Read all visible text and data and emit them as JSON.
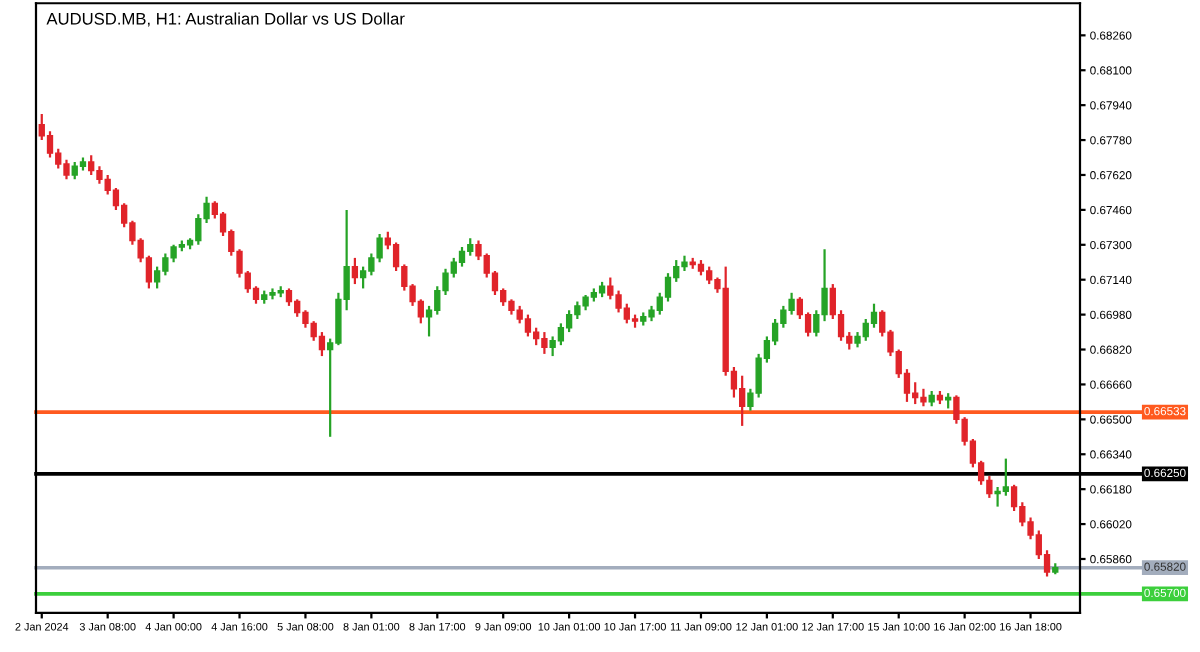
{
  "chart_data": {
    "type": "candlestick",
    "title": "AUDUSD.MB, H1: Australian Dollar vs US Dollar",
    "ohlc": [
      [
        0.6785,
        0.679,
        0.6778,
        0.678
      ],
      [
        0.678,
        0.6782,
        0.677,
        0.6772
      ],
      [
        0.6772,
        0.6774,
        0.6765,
        0.6767
      ],
      [
        0.6767,
        0.6769,
        0.676,
        0.6762
      ],
      [
        0.6762,
        0.6768,
        0.676,
        0.6766
      ],
      [
        0.6766,
        0.677,
        0.6764,
        0.6768
      ],
      [
        0.6768,
        0.6771,
        0.6762,
        0.6764
      ],
      [
        0.6764,
        0.6766,
        0.6758,
        0.676
      ],
      [
        0.676,
        0.6762,
        0.6753,
        0.6755
      ],
      [
        0.6755,
        0.6756,
        0.6746,
        0.6748
      ],
      [
        0.6748,
        0.6749,
        0.6738,
        0.674
      ],
      [
        0.674,
        0.6741,
        0.673,
        0.6732
      ],
      [
        0.6732,
        0.6733,
        0.6722,
        0.6724
      ],
      [
        0.6724,
        0.6725,
        0.671,
        0.6713
      ],
      [
        0.6713,
        0.672,
        0.671,
        0.6718
      ],
      [
        0.6718,
        0.6726,
        0.6716,
        0.6724
      ],
      [
        0.6724,
        0.673,
        0.6722,
        0.6729
      ],
      [
        0.6729,
        0.6732,
        0.6727,
        0.673
      ],
      [
        0.673,
        0.6733,
        0.6728,
        0.6732
      ],
      [
        0.6732,
        0.6744,
        0.673,
        0.6742
      ],
      [
        0.6742,
        0.6752,
        0.674,
        0.6749
      ],
      [
        0.6749,
        0.675,
        0.6742,
        0.6744
      ],
      [
        0.6744,
        0.6745,
        0.6734,
        0.6736
      ],
      [
        0.6736,
        0.6737,
        0.6725,
        0.6727
      ],
      [
        0.6727,
        0.6728,
        0.6715,
        0.6717
      ],
      [
        0.6717,
        0.6718,
        0.6708,
        0.671
      ],
      [
        0.671,
        0.6711,
        0.6703,
        0.6705
      ],
      [
        0.6705,
        0.6709,
        0.6703,
        0.6707
      ],
      [
        0.6707,
        0.671,
        0.6705,
        0.6708
      ],
      [
        0.6708,
        0.6711,
        0.6706,
        0.6709
      ],
      [
        0.6709,
        0.671,
        0.6702,
        0.6704
      ],
      [
        0.6704,
        0.6705,
        0.6697,
        0.6699
      ],
      [
        0.6699,
        0.67,
        0.6692,
        0.6694
      ],
      [
        0.6694,
        0.6695,
        0.6686,
        0.6688
      ],
      [
        0.6688,
        0.669,
        0.6679,
        0.6682
      ],
      [
        0.6682,
        0.6687,
        0.6642,
        0.6685
      ],
      [
        0.6685,
        0.6708,
        0.6684,
        0.6705
      ],
      [
        0.6705,
        0.6746,
        0.67,
        0.672
      ],
      [
        0.672,
        0.6724,
        0.6712,
        0.6715
      ],
      [
        0.6715,
        0.672,
        0.671,
        0.6718
      ],
      [
        0.6718,
        0.6726,
        0.6716,
        0.6724
      ],
      [
        0.6724,
        0.6735,
        0.6722,
        0.6733
      ],
      [
        0.6733,
        0.6736,
        0.6728,
        0.673
      ],
      [
        0.673,
        0.6731,
        0.6718,
        0.672
      ],
      [
        0.672,
        0.6721,
        0.6709,
        0.6711
      ],
      [
        0.6711,
        0.6712,
        0.6702,
        0.6704
      ],
      [
        0.6704,
        0.6705,
        0.6694,
        0.6697
      ],
      [
        0.6697,
        0.6702,
        0.6688,
        0.67
      ],
      [
        0.67,
        0.6711,
        0.6698,
        0.6709
      ],
      [
        0.6709,
        0.6719,
        0.6707,
        0.6717
      ],
      [
        0.6717,
        0.6724,
        0.6715,
        0.6722
      ],
      [
        0.6722,
        0.6729,
        0.672,
        0.6727
      ],
      [
        0.6727,
        0.6733,
        0.6725,
        0.673
      ],
      [
        0.673,
        0.6732,
        0.6723,
        0.6725
      ],
      [
        0.6725,
        0.6726,
        0.6715,
        0.6717
      ],
      [
        0.6717,
        0.6718,
        0.6707,
        0.6709
      ],
      [
        0.6709,
        0.671,
        0.6702,
        0.6704
      ],
      [
        0.6704,
        0.6705,
        0.6698,
        0.67
      ],
      [
        0.67,
        0.6702,
        0.6694,
        0.6696
      ],
      [
        0.6696,
        0.6698,
        0.6688,
        0.669
      ],
      [
        0.669,
        0.6692,
        0.6684,
        0.6687
      ],
      [
        0.6687,
        0.669,
        0.668,
        0.6683
      ],
      [
        0.6683,
        0.6688,
        0.6679,
        0.6686
      ],
      [
        0.6686,
        0.6694,
        0.6684,
        0.6692
      ],
      [
        0.6692,
        0.67,
        0.669,
        0.6698
      ],
      [
        0.6698,
        0.6704,
        0.6696,
        0.6702
      ],
      [
        0.6702,
        0.6707,
        0.67,
        0.6706
      ],
      [
        0.6706,
        0.671,
        0.6704,
        0.6708
      ],
      [
        0.6708,
        0.6713,
        0.6706,
        0.6711
      ],
      [
        0.6711,
        0.6715,
        0.6705,
        0.6707
      ],
      [
        0.6707,
        0.6709,
        0.6699,
        0.6701
      ],
      [
        0.6701,
        0.6703,
        0.6694,
        0.6696
      ],
      [
        0.6696,
        0.6698,
        0.6692,
        0.6695
      ],
      [
        0.6695,
        0.6699,
        0.6693,
        0.6697
      ],
      [
        0.6697,
        0.6702,
        0.6695,
        0.67
      ],
      [
        0.67,
        0.6708,
        0.6698,
        0.6706
      ],
      [
        0.6706,
        0.6717,
        0.6704,
        0.6715
      ],
      [
        0.6715,
        0.6723,
        0.6713,
        0.672
      ],
      [
        0.672,
        0.6725,
        0.6718,
        0.6722
      ],
      [
        0.6722,
        0.6724,
        0.6719,
        0.6721
      ],
      [
        0.6721,
        0.6723,
        0.6716,
        0.6718
      ],
      [
        0.6718,
        0.672,
        0.6712,
        0.6714
      ],
      [
        0.6714,
        0.6715,
        0.6708,
        0.671
      ],
      [
        0.671,
        0.672,
        0.667,
        0.6672
      ],
      [
        0.6672,
        0.6674,
        0.666,
        0.6664
      ],
      [
        0.6664,
        0.667,
        0.6647,
        0.6656
      ],
      [
        0.6656,
        0.6664,
        0.6654,
        0.6662
      ],
      [
        0.6662,
        0.668,
        0.666,
        0.6678
      ],
      [
        0.6678,
        0.6688,
        0.6676,
        0.6686
      ],
      [
        0.6686,
        0.6696,
        0.6684,
        0.6694
      ],
      [
        0.6694,
        0.6702,
        0.6692,
        0.67
      ],
      [
        0.67,
        0.6708,
        0.6698,
        0.6705
      ],
      [
        0.6705,
        0.6706,
        0.6696,
        0.6698
      ],
      [
        0.6698,
        0.6699,
        0.6688,
        0.669
      ],
      [
        0.669,
        0.67,
        0.6688,
        0.6698
      ],
      [
        0.6698,
        0.6728,
        0.6695,
        0.671
      ],
      [
        0.671,
        0.6712,
        0.6696,
        0.6698
      ],
      [
        0.6698,
        0.67,
        0.6686,
        0.6688
      ],
      [
        0.6688,
        0.669,
        0.6682,
        0.6685
      ],
      [
        0.6685,
        0.669,
        0.6683,
        0.6688
      ],
      [
        0.6688,
        0.6696,
        0.6686,
        0.6694
      ],
      [
        0.6694,
        0.6703,
        0.6692,
        0.6699
      ],
      [
        0.6699,
        0.67,
        0.6688,
        0.669
      ],
      [
        0.669,
        0.6691,
        0.6679,
        0.6681
      ],
      [
        0.6681,
        0.6682,
        0.6669,
        0.6671
      ],
      [
        0.6671,
        0.6673,
        0.6658,
        0.6662
      ],
      [
        0.6662,
        0.6667,
        0.6657,
        0.666
      ],
      [
        0.666,
        0.6664,
        0.6656,
        0.6658
      ],
      [
        0.6658,
        0.6663,
        0.6656,
        0.6661
      ],
      [
        0.6661,
        0.6663,
        0.6657,
        0.6659
      ],
      [
        0.6659,
        0.6662,
        0.6655,
        0.666
      ],
      [
        0.666,
        0.6661,
        0.6648,
        0.665
      ],
      [
        0.665,
        0.6651,
        0.6638,
        0.664
      ],
      [
        0.664,
        0.6641,
        0.6628,
        0.663
      ],
      [
        0.663,
        0.6631,
        0.662,
        0.6622
      ],
      [
        0.6622,
        0.6624,
        0.6614,
        0.6616
      ],
      [
        0.6616,
        0.6619,
        0.661,
        0.6617
      ],
      [
        0.6617,
        0.6632,
        0.6615,
        0.6619
      ],
      [
        0.6619,
        0.662,
        0.6608,
        0.661
      ],
      [
        0.661,
        0.6612,
        0.6601,
        0.6603
      ],
      [
        0.6603,
        0.6605,
        0.6595,
        0.6597
      ],
      [
        0.6597,
        0.6599,
        0.6586,
        0.6588
      ],
      [
        0.6588,
        0.659,
        0.6578,
        0.658
      ],
      [
        0.658,
        0.6584,
        0.6579,
        0.6582
      ]
    ],
    "categories": [
      "2 Jan 2024",
      null,
      null,
      null,
      null,
      null,
      null,
      null,
      "3 Jan 08:00",
      null,
      null,
      null,
      null,
      null,
      null,
      null,
      "4 Jan 00:00",
      null,
      null,
      null,
      null,
      null,
      null,
      null,
      "4 Jan 16:00",
      null,
      null,
      null,
      null,
      null,
      null,
      null,
      "5 Jan 08:00",
      null,
      null,
      null,
      null,
      null,
      null,
      null,
      "8 Jan 01:00",
      null,
      null,
      null,
      null,
      null,
      null,
      null,
      "8 Jan 17:00",
      null,
      null,
      null,
      null,
      null,
      null,
      null,
      "9 Jan 09:00",
      null,
      null,
      null,
      null,
      null,
      null,
      null,
      "10 Jan 01:00",
      null,
      null,
      null,
      null,
      null,
      null,
      null,
      "10 Jan 17:00",
      null,
      null,
      null,
      null,
      null,
      null,
      null,
      "11 Jan 09:00",
      null,
      null,
      null,
      null,
      null,
      null,
      null,
      "12 Jan 01:00",
      null,
      null,
      null,
      null,
      null,
      null,
      null,
      "12 Jan 17:00",
      null,
      null,
      null,
      null,
      null,
      null,
      null,
      "15 Jan 10:00",
      null,
      null,
      null,
      null,
      null,
      null,
      null,
      "16 Jan 02:00",
      null,
      null,
      null,
      null,
      null,
      null,
      null,
      "16 Jan 18:00",
      null,
      null,
      null
    ],
    "ylim": [
      0.65613,
      0.68407
    ],
    "yticks": [
      {
        "value": 0.6826,
        "label": "0.68260"
      },
      {
        "value": 0.681,
        "label": "0.68100"
      },
      {
        "value": 0.6794,
        "label": "0.67940"
      },
      {
        "value": 0.6778,
        "label": "0.67780"
      },
      {
        "value": 0.6762,
        "label": "0.67620"
      },
      {
        "value": 0.6746,
        "label": "0.67460"
      },
      {
        "value": 0.673,
        "label": "0.67300"
      },
      {
        "value": 0.6714,
        "label": "0.67140"
      },
      {
        "value": 0.6698,
        "label": "0.66980"
      },
      {
        "value": 0.6682,
        "label": "0.66820"
      },
      {
        "value": 0.6666,
        "label": "0.66660"
      },
      {
        "value": 0.665,
        "label": "0.66500"
      },
      {
        "value": 0.6634,
        "label": "0.66340"
      },
      {
        "value": 0.6618,
        "label": "0.66180"
      },
      {
        "value": 0.6602,
        "label": "0.66020"
      },
      {
        "value": 0.6586,
        "label": "0.65860"
      }
    ],
    "ref_lines": [
      {
        "axis": "y",
        "value": 0.66533,
        "label": "0.66533",
        "color": "#ff5a1f"
      },
      {
        "axis": "y",
        "value": 0.6625,
        "label": "0.66250",
        "color": "#000000"
      },
      {
        "axis": "y",
        "value": 0.6582,
        "label": "0.65820",
        "color": "#a3adbd"
      },
      {
        "axis": "y",
        "value": 0.657,
        "label": "0.65700",
        "color": "#3ccf3c"
      }
    ],
    "grid": false,
    "legend": false
  }
}
